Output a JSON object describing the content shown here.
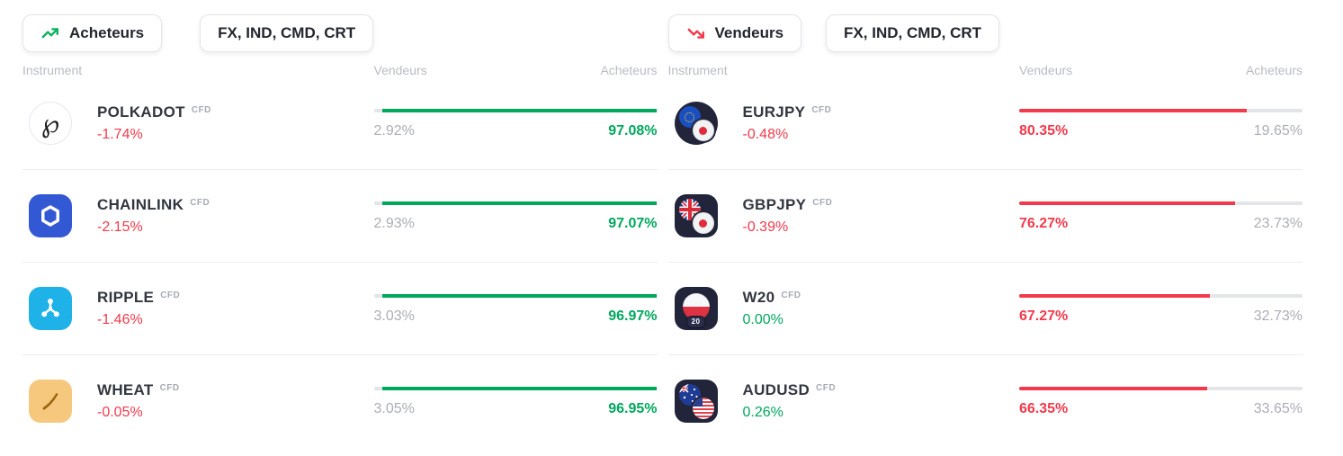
{
  "colors": {
    "green": "#00a85e",
    "red": "#f23a4c",
    "muted": "#abaeb6",
    "dark": "#32363f",
    "track": "#e3e5e9"
  },
  "panels": [
    {
      "name": "buyers",
      "header": {
        "label": "Acheteurs",
        "icon": "trending-up-icon"
      },
      "filter": {
        "label": "FX, IND, CMD, CRT"
      },
      "columns": {
        "instrument": "Instrument",
        "sellers": "Vendeurs",
        "buyers": "Acheteurs"
      },
      "rows": [
        {
          "symbol": "POLKADOT",
          "type": "CFD",
          "change": "-1.74%",
          "change_color": "#f23a4c",
          "sellers": "2.92%",
          "buyers": "97.08%",
          "sellers_pct": 2.92,
          "buyers_pct": 97.08,
          "icon": "polkadot-icon"
        },
        {
          "symbol": "CHAINLINK",
          "type": "CFD",
          "change": "-2.15%",
          "change_color": "#f23a4c",
          "sellers": "2.93%",
          "buyers": "97.07%",
          "sellers_pct": 2.93,
          "buyers_pct": 97.07,
          "icon": "chainlink-icon"
        },
        {
          "symbol": "RIPPLE",
          "type": "CFD",
          "change": "-1.46%",
          "change_color": "#f23a4c",
          "sellers": "3.03%",
          "buyers": "96.97%",
          "sellers_pct": 3.03,
          "buyers_pct": 96.97,
          "icon": "ripple-icon"
        },
        {
          "symbol": "WHEAT",
          "type": "CFD",
          "change": "-0.05%",
          "change_color": "#f23a4c",
          "sellers": "3.05%",
          "buyers": "96.95%",
          "sellers_pct": 3.05,
          "buyers_pct": 96.95,
          "icon": "wheat-icon"
        }
      ]
    },
    {
      "name": "sellers",
      "header": {
        "label": "Vendeurs",
        "icon": "trending-down-icon"
      },
      "filter": {
        "label": "FX, IND, CMD, CRT"
      },
      "columns": {
        "instrument": "Instrument",
        "sellers": "Vendeurs",
        "buyers": "Acheteurs"
      },
      "rows": [
        {
          "symbol": "EURJPY",
          "type": "CFD",
          "change": "-0.48%",
          "change_color": "#f23a4c",
          "sellers": "80.35%",
          "buyers": "19.65%",
          "sellers_pct": 80.35,
          "buyers_pct": 19.65,
          "icon": "eurjpy-icon"
        },
        {
          "symbol": "GBPJPY",
          "type": "CFD",
          "change": "-0.39%",
          "change_color": "#f23a4c",
          "sellers": "76.27%",
          "buyers": "23.73%",
          "sellers_pct": 76.27,
          "buyers_pct": 23.73,
          "icon": "gbpjpy-icon"
        },
        {
          "symbol": "W20",
          "type": "CFD",
          "change": "0.00%",
          "change_color": "#00a85e",
          "sellers": "67.27%",
          "buyers": "32.73%",
          "sellers_pct": 67.27,
          "buyers_pct": 32.73,
          "icon": "w20-icon",
          "icon_badge": "20"
        },
        {
          "symbol": "AUDUSD",
          "type": "CFD",
          "change": "0.26%",
          "change_color": "#00a85e",
          "sellers": "66.35%",
          "buyers": "33.65%",
          "sellers_pct": 66.35,
          "buyers_pct": 33.65,
          "icon": "audusd-icon"
        }
      ]
    }
  ]
}
